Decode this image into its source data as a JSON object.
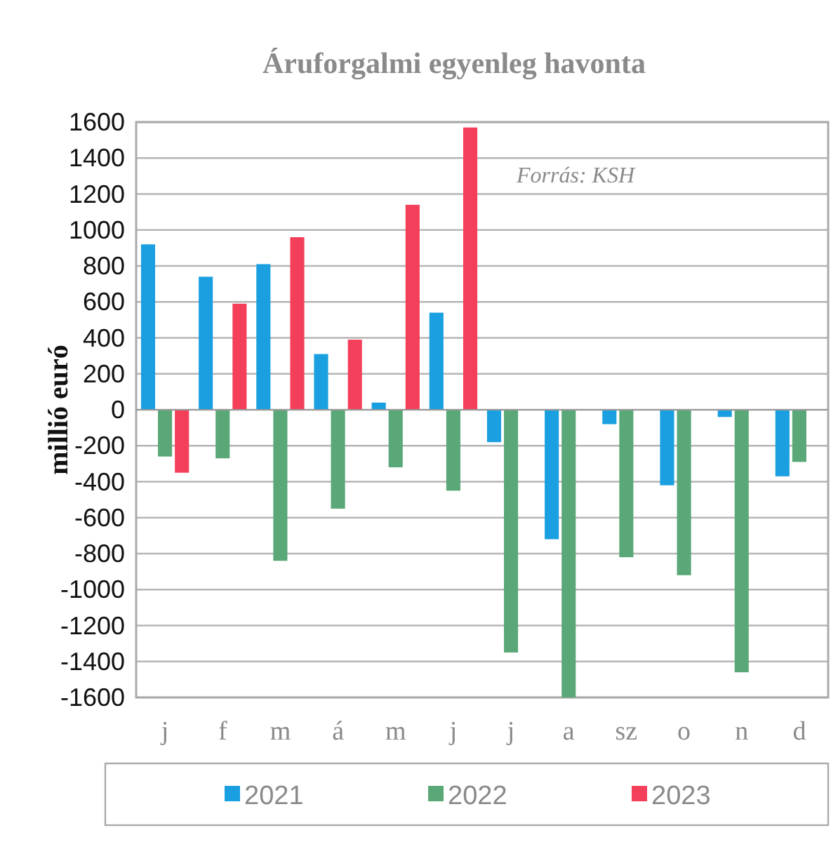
{
  "chart_data": {
    "type": "bar",
    "title": "Áruforgalmi egyenleg havonta",
    "ylabel": "millió euró",
    "annotations": [
      "Forrás: KSH"
    ],
    "categories": [
      "j",
      "f",
      "m",
      "á",
      "m",
      "j",
      "j",
      "a",
      "sz",
      "o",
      "n",
      "d"
    ],
    "series": [
      {
        "name": "2021",
        "color": "#1a9fe0",
        "values": [
          920,
          740,
          810,
          310,
          40,
          540,
          -180,
          -720,
          -80,
          -420,
          -40,
          -370
        ]
      },
      {
        "name": "2022",
        "color": "#5aa877",
        "values": [
          -260,
          -270,
          -840,
          -550,
          -320,
          -450,
          -1350,
          -1600,
          -820,
          -920,
          -1460,
          -290
        ]
      },
      {
        "name": "2023",
        "color": "#f43f5a",
        "values": [
          -350,
          590,
          960,
          390,
          1140,
          1570,
          null,
          null,
          null,
          null,
          null,
          null
        ]
      }
    ],
    "ylim": [
      -1600,
      1600
    ],
    "yticks": [
      -1600,
      -1400,
      -1200,
      -1000,
      -800,
      -600,
      -400,
      -200,
      0,
      200,
      400,
      600,
      800,
      1000,
      1200,
      1400,
      1600
    ],
    "grid": "y",
    "legend": "bottom"
  }
}
